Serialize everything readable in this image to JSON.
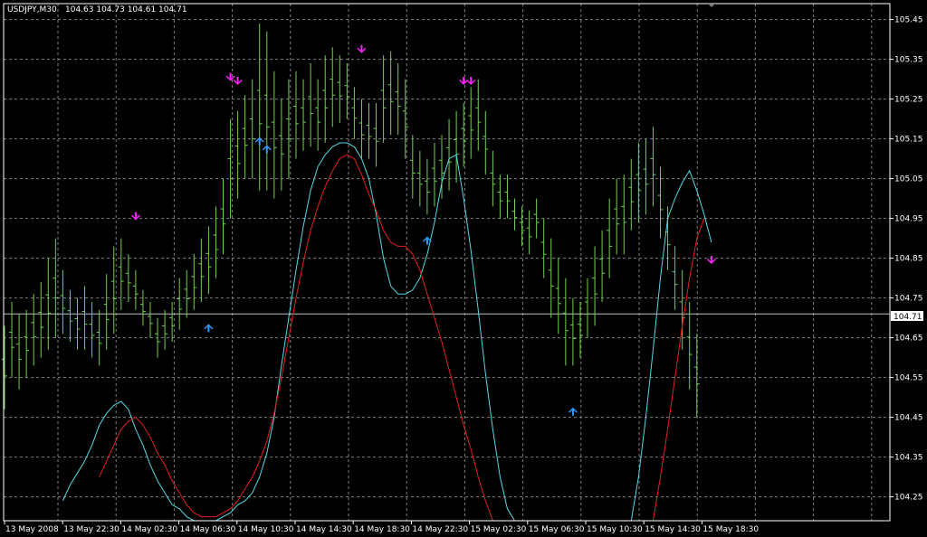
{
  "chart_data": {
    "type": "line",
    "symbol_title": "USDJPY,M30",
    "ohlc_readout": "104.63 104.73 104.61 104.71",
    "current_price": "104.71",
    "ylim": [
      104.19,
      105.49
    ],
    "y_ticks": [
      "105.45",
      "105.35",
      "105.25",
      "105.15",
      "105.05",
      "104.95",
      "104.85",
      "104.75",
      "104.65",
      "104.55",
      "104.45",
      "104.35",
      "104.25"
    ],
    "x_tick_labels": [
      "13 May 2008",
      "13 May 22:30",
      "14 May 02:30",
      "14 May 06:30",
      "14 May 10:30",
      "14 May 14:30",
      "14 May 18:30",
      "14 May 22:30",
      "15 May 02:30",
      "15 May 06:30",
      "15 May 10:30",
      "15 May 14:30",
      "15 May 18:30"
    ],
    "grid": true,
    "colors": {
      "background": "#000000",
      "bars": "#6fd14f",
      "grid": "#7f7f7f",
      "cyan_line": "#53d9e6",
      "red_line": "#e02020",
      "sell_arrow": "#ff22ff",
      "buy_arrow": "#2f9cff",
      "axis": "#ffffff"
    },
    "bar_count": 96,
    "bar_hl": [
      [
        104.47,
        104.68
      ],
      [
        104.55,
        104.74
      ],
      [
        104.52,
        104.71
      ],
      [
        104.55,
        104.72
      ],
      [
        104.58,
        104.76
      ],
      [
        104.6,
        104.79
      ],
      [
        104.62,
        104.85
      ],
      [
        104.65,
        104.9
      ],
      [
        104.66,
        104.82
      ],
      [
        104.64,
        104.77
      ],
      [
        104.62,
        104.75
      ],
      [
        104.62,
        104.78
      ],
      [
        104.6,
        104.74
      ],
      [
        104.58,
        104.72
      ],
      [
        104.62,
        104.81
      ],
      [
        104.66,
        104.88
      ],
      [
        104.72,
        104.9
      ],
      [
        104.74,
        104.86
      ],
      [
        104.72,
        104.82
      ],
      [
        104.68,
        104.77
      ],
      [
        104.65,
        104.74
      ],
      [
        104.6,
        104.7
      ],
      [
        104.62,
        104.72
      ],
      [
        104.64,
        104.74
      ],
      [
        104.67,
        104.8
      ],
      [
        104.7,
        104.82
      ],
      [
        104.72,
        104.86
      ],
      [
        104.74,
        104.9
      ],
      [
        104.76,
        104.93
      ],
      [
        104.8,
        104.98
      ],
      [
        104.86,
        105.05
      ],
      [
        104.95,
        105.2
      ],
      [
        105.0,
        105.22
      ],
      [
        105.05,
        105.26
      ],
      [
        105.05,
        105.3
      ],
      [
        105.02,
        105.44
      ],
      [
        105.02,
        105.42
      ],
      [
        105.0,
        105.32
      ],
      [
        105.02,
        105.25
      ],
      [
        105.05,
        105.3
      ],
      [
        105.1,
        105.32
      ],
      [
        105.12,
        105.3
      ],
      [
        105.13,
        105.34
      ],
      [
        105.12,
        105.3
      ],
      [
        105.14,
        105.36
      ],
      [
        105.18,
        105.38
      ],
      [
        105.19,
        105.36
      ],
      [
        105.2,
        105.34
      ],
      [
        105.15,
        105.28
      ],
      [
        105.1,
        105.25
      ],
      [
        105.1,
        105.24
      ],
      [
        105.08,
        105.24
      ],
      [
        105.14,
        105.36
      ],
      [
        105.16,
        105.37
      ],
      [
        105.16,
        105.34
      ],
      [
        105.1,
        105.3
      ],
      [
        105.0,
        105.16
      ],
      [
        104.98,
        105.12
      ],
      [
        104.96,
        105.1
      ],
      [
        104.98,
        105.14
      ],
      [
        105.0,
        105.16
      ],
      [
        105.02,
        105.2
      ],
      [
        105.04,
        105.22
      ],
      [
        105.08,
        105.24
      ],
      [
        105.1,
        105.28
      ],
      [
        105.12,
        105.3
      ],
      [
        105.06,
        105.22
      ],
      [
        104.98,
        105.12
      ],
      [
        104.95,
        105.06
      ],
      [
        104.95,
        105.06
      ],
      [
        104.92,
        105.0
      ],
      [
        104.88,
        104.98
      ],
      [
        104.86,
        104.97
      ],
      [
        104.9,
        105.0
      ],
      [
        104.8,
        104.95
      ],
      [
        104.7,
        104.9
      ],
      [
        104.66,
        104.85
      ],
      [
        104.58,
        104.8
      ],
      [
        104.58,
        104.75
      ],
      [
        104.6,
        104.74
      ],
      [
        104.65,
        104.8
      ],
      [
        104.68,
        104.88
      ],
      [
        104.74,
        104.92
      ],
      [
        104.8,
        105.0
      ],
      [
        104.86,
        105.05
      ],
      [
        104.86,
        105.06
      ],
      [
        104.92,
        105.1
      ],
      [
        104.94,
        105.14
      ],
      [
        104.96,
        105.15
      ],
      [
        104.98,
        105.18
      ],
      [
        104.9,
        105.08
      ],
      [
        104.82,
        104.98
      ],
      [
        104.72,
        104.88
      ],
      [
        104.62,
        104.82
      ],
      [
        104.52,
        104.74
      ],
      [
        104.45,
        104.66
      ]
    ],
    "cyan_series": [
      [
        104.24,
        104.28,
        104.31,
        104.34,
        104.38,
        104.43,
        104.46,
        104.48,
        104.49,
        104.47,
        104.42,
        104.38,
        104.33,
        104.29,
        104.26,
        104.23,
        104.22,
        104.2,
        104.19,
        104.18,
        104.18,
        104.19,
        104.2,
        104.21,
        104.23,
        104.24,
        104.26,
        104.3,
        104.36,
        104.45,
        104.58,
        104.7,
        104.82,
        104.93,
        105.02,
        105.08,
        105.11,
        105.13,
        105.14,
        105.14,
        105.13,
        105.1,
        105.05,
        104.96,
        104.85,
        104.78,
        104.76,
        104.76,
        104.77,
        104.8,
        104.86,
        104.94,
        105.04,
        105.1,
        105.11,
        105.0,
        104.87,
        104.72,
        104.56,
        104.42,
        104.3,
        104.22,
        104.19
      ]
    ],
    "red_series": [
      [
        104.3,
        104.34,
        104.38,
        104.42,
        104.44,
        104.45,
        104.43,
        104.4,
        104.36,
        104.33,
        104.29,
        104.26,
        104.23,
        104.21,
        104.2,
        104.2,
        104.2,
        104.21,
        104.22,
        104.24,
        104.27,
        104.3,
        104.34,
        104.39,
        104.46,
        104.55,
        104.65,
        104.75,
        104.84,
        104.92,
        104.98,
        105.03,
        105.07,
        105.1,
        105.11,
        105.1,
        105.06,
        105.01,
        104.97,
        104.92,
        104.89,
        104.88,
        104.88,
        104.86,
        104.82,
        104.76,
        104.7,
        104.64,
        104.57,
        104.5,
        104.43,
        104.37,
        104.3,
        104.24,
        104.19
      ]
    ],
    "sell_arrows": [
      [
        18,
        104.95
      ],
      [
        31,
        105.3
      ],
      [
        32,
        105.29
      ],
      [
        49,
        105.37
      ],
      [
        63,
        105.29
      ],
      [
        64,
        105.29
      ],
      [
        97,
        104.84
      ]
    ],
    "buy_arrows": [
      [
        28,
        104.68
      ],
      [
        35,
        105.15
      ],
      [
        36,
        105.13
      ],
      [
        58,
        104.9
      ],
      [
        78,
        104.47
      ]
    ]
  }
}
